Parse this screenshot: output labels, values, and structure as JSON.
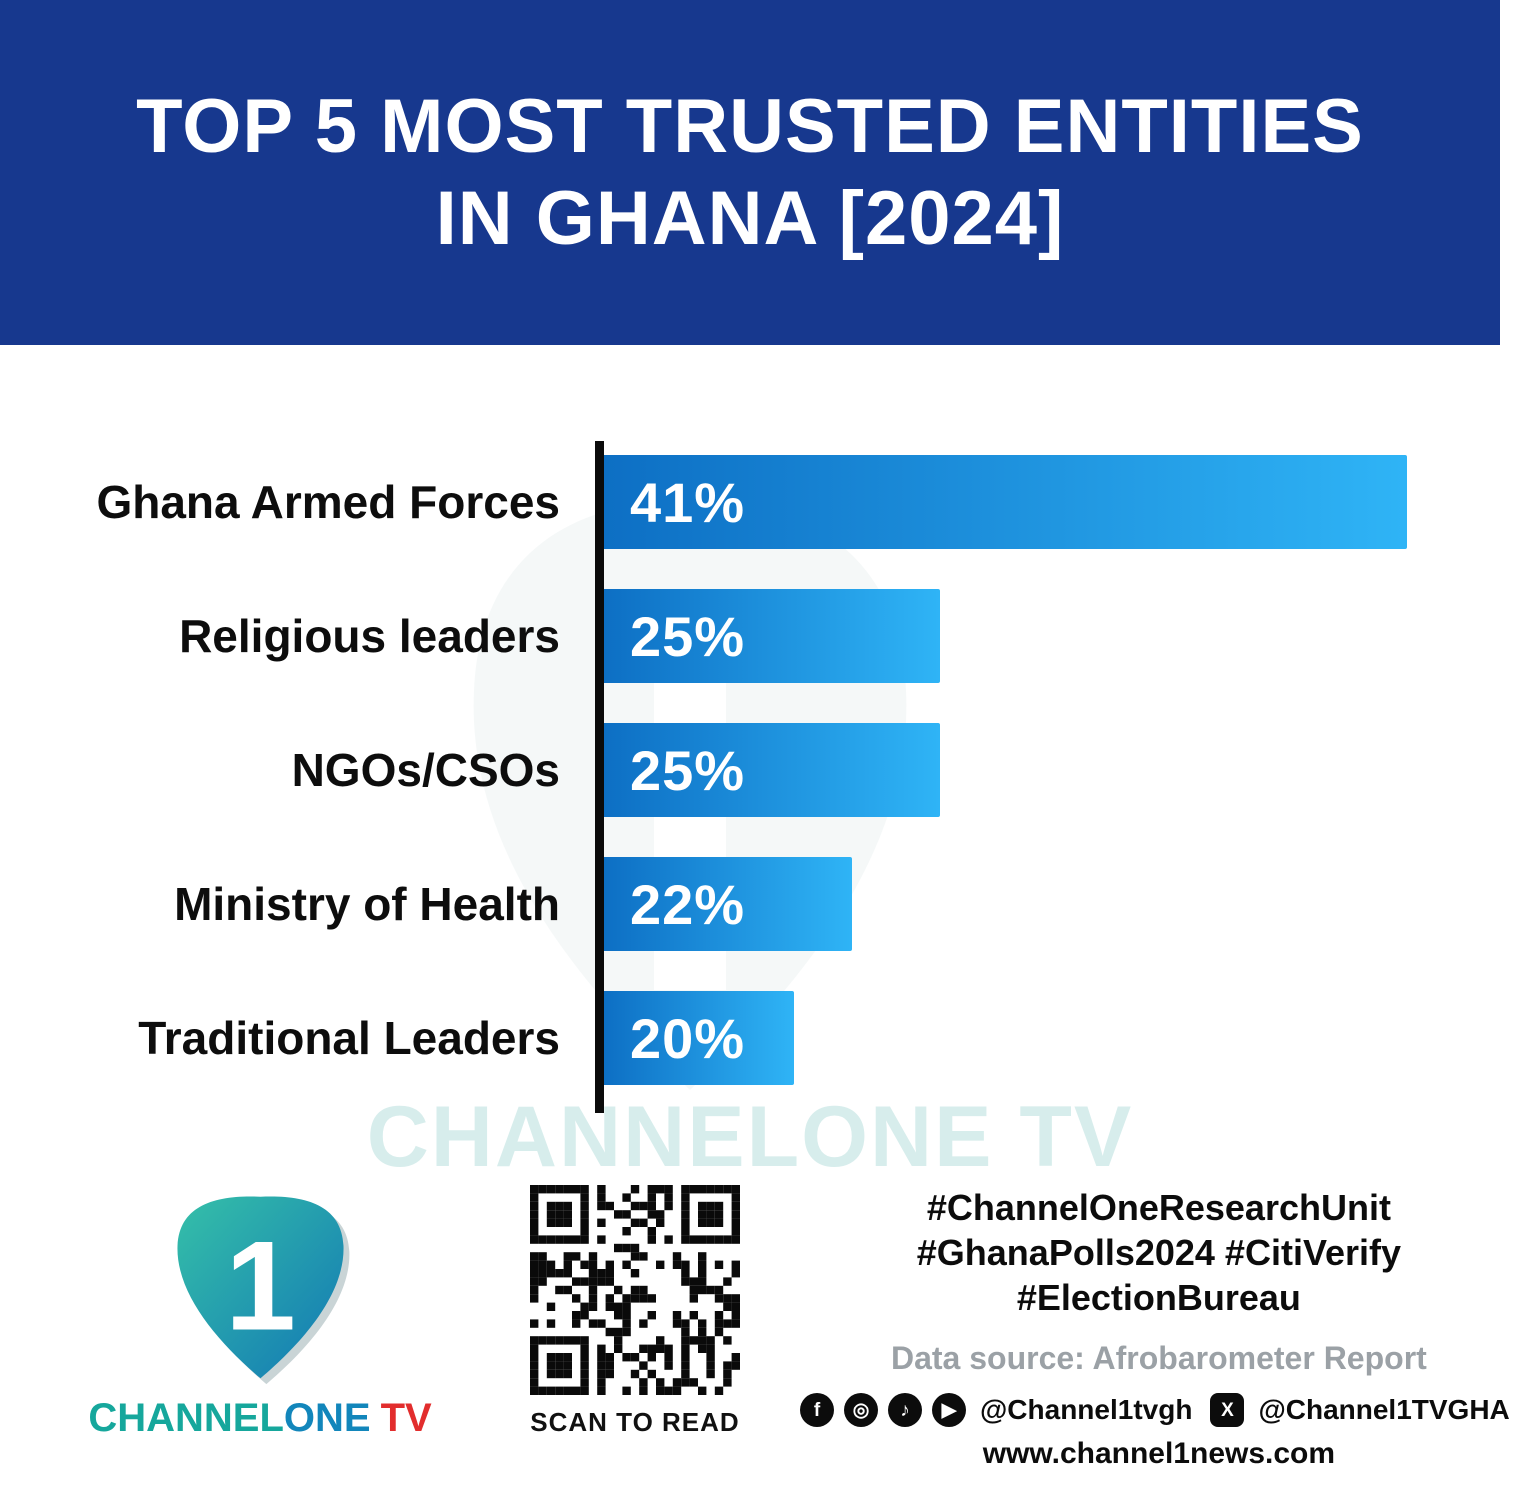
{
  "header": {
    "title_line1": "TOP 5 MOST TRUSTED ENTITIES",
    "title_line2": "IN GHANA [2024]"
  },
  "chart_data": {
    "type": "bar",
    "orientation": "horizontal",
    "title": "Top 5 Most Trusted Entities in Ghana [2024]",
    "categories": [
      "Ghana Armed Forces",
      "Religious leaders",
      "NGOs/CSOs",
      "Ministry of Health",
      "Traditional Leaders"
    ],
    "values": [
      41,
      25,
      25,
      22,
      20
    ],
    "value_labels": [
      "41%",
      "25%",
      "25%",
      "22%",
      "20%"
    ],
    "xlabel": "",
    "ylabel": "",
    "xlim": [
      13.5,
      41.8
    ],
    "grid": false,
    "legend": false,
    "bar_color_start": "#0d6fc4",
    "bar_color_end": "#2fb4f6",
    "axis_color": "#0b0b0b"
  },
  "watermark": {
    "text": "CHANNELONE TV"
  },
  "footer": {
    "logo": {
      "brand_channel": "CHANNEL",
      "brand_one": "ONE",
      "brand_tv": "TV",
      "mark": "1"
    },
    "qr_caption": "SCAN TO READ",
    "hashtags": [
      "#ChannelOneResearchUnit",
      "#GhanaPolls2024 #CitiVerify",
      "#ElectionBureau"
    ],
    "data_source": "Data source: Afrobarometer Report",
    "icons": {
      "facebook": "f",
      "instagram": "◎",
      "tiktok": "♪",
      "youtube": "▶",
      "x": "X"
    },
    "social": {
      "handle1": "@Channel1tvgh",
      "handle2": "@Channel1TVGHA"
    },
    "website": "www.channel1news.com"
  },
  "colors": {
    "header_bg": "#17388e",
    "accent_red": "#e22d2d",
    "teal": "#16a79c",
    "blue": "#1286bb"
  }
}
